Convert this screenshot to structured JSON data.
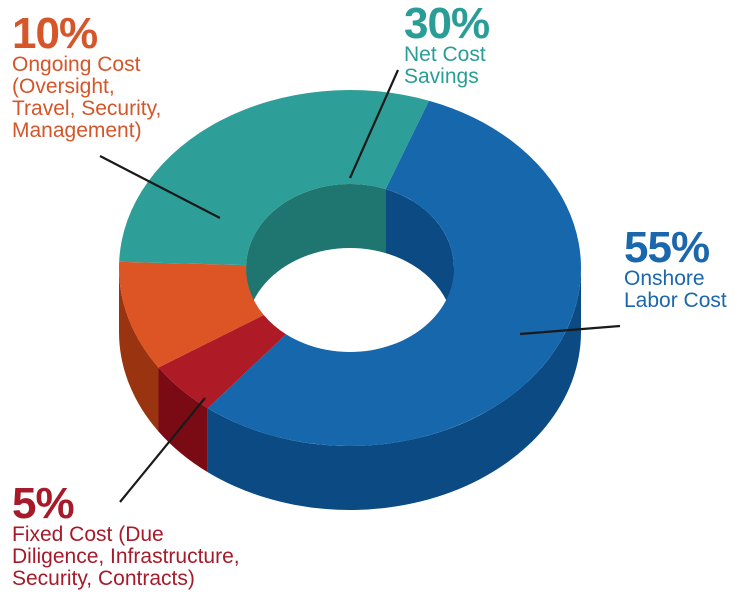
{
  "chart_data": {
    "type": "pie",
    "variant": "3d-donut",
    "title": "",
    "slices": [
      {
        "label": "Onshore Labor Cost",
        "value": 55,
        "percent_label": "55%",
        "color": "#1767ad",
        "side_color": "#0b4a83"
      },
      {
        "label": "Fixed Cost (Due Diligence, Infrastructure, Security, Contracts)",
        "value": 5,
        "percent_label": "5%",
        "color": "#ae1a26",
        "side_color": "#7a0a14"
      },
      {
        "label": "Ongoing Cost (Oversight, Travel, Security, Management)",
        "value": 10,
        "percent_label": "10%",
        "color": "#dd5525",
        "side_color": "#9a3410"
      },
      {
        "label": "Net Cost Savings",
        "value": 30,
        "percent_label": "30%",
        "color": "#2e9f98",
        "side_color": "#1f756f"
      }
    ]
  },
  "callouts": {
    "ongoing": {
      "pct": "10%",
      "text": "Ongoing Cost\n(Oversight,\nTravel, Security,\nManagement)"
    },
    "net": {
      "pct": "30%",
      "text": "Net Cost\nSavings"
    },
    "onshore": {
      "pct": "55%",
      "text": "Onshore\nLabor Cost"
    },
    "fixed": {
      "pct": "5%",
      "text": "Fixed Cost (Due\nDiligence, Infrastructure,\nSecurity, Contracts)"
    }
  }
}
